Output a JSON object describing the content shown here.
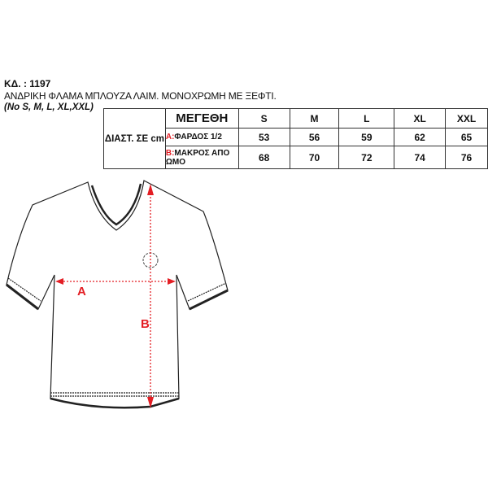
{
  "header": {
    "code": "ΚΔ. : 1197",
    "description": "ΑΝΔΡΙΚΗ ΦΛΑΜΑ ΜΠΛΟΥΖΑ ΛΑΙΜ. ΜΟΝΟΧΡΩΜΗ ΜΕ ΞΕΦΤΙ.",
    "sizes_note": "(No S, M, L, XL,XXL)"
  },
  "table": {
    "dim_label": "ΔΙΑΣΤ. ΣΕ cm",
    "size_header": "ΜΕΓΕΘΗ",
    "sizes": [
      "S",
      "M",
      "L",
      "XL",
      "XXL"
    ],
    "rows": [
      {
        "key": "A:",
        "label": "ΦΑΡΔΟΣ 1/2",
        "values": [
          "53",
          "56",
          "59",
          "62",
          "65"
        ]
      },
      {
        "key": "B:",
        "label": "ΜΑΚΡΟΣ ΑΠΟ ΩΜΟ",
        "values": [
          "68",
          "70",
          "72",
          "74",
          "76"
        ]
      }
    ]
  },
  "diagram": {
    "label_a": "A",
    "label_b": "B",
    "accent": "#e31e24"
  }
}
